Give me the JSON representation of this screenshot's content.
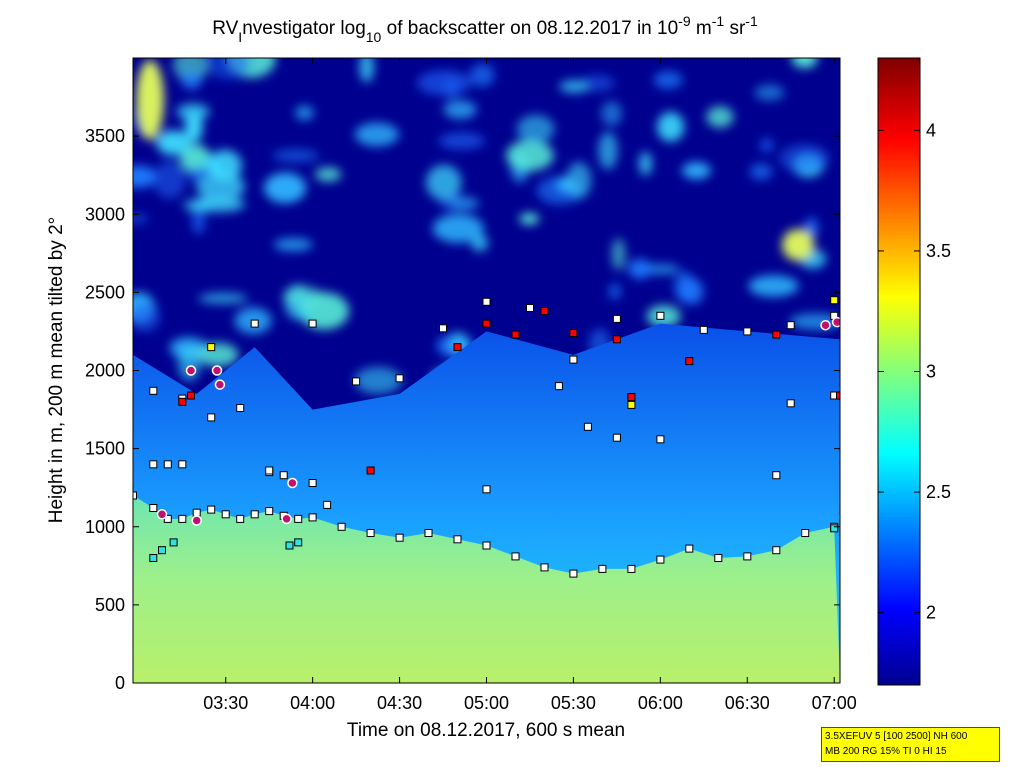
{
  "chart_data": {
    "type": "heatmap",
    "title": {
      "prefix": "RV",
      "sub_i": "I",
      "mid": "nvestigator log",
      "sub_10": "10",
      "suffix": " of backscatter on 08.12.2017 in 10",
      "sup1": "-9",
      "unit_m": " m",
      "sup2": "-1",
      "unit_sr": " sr",
      "sup3": "-1"
    },
    "xlabel": "Time on 08.12.2017, 600 s mean",
    "ylabel": "Height in m, 200 m mean tilted by 2°",
    "x_range": [
      "02:58",
      "07:02"
    ],
    "x_ticks": [
      "03:30",
      "04:00",
      "04:30",
      "05:00",
      "05:30",
      "06:00",
      "06:30",
      "07:00"
    ],
    "ylim": [
      0,
      4000
    ],
    "y_ticks": [
      0,
      500,
      1000,
      1500,
      2000,
      2500,
      3000,
      3500
    ],
    "colorbar": {
      "range": [
        1.7,
        4.3
      ],
      "ticks": [
        2,
        2.5,
        3,
        3.5,
        4
      ],
      "colormap": "jet"
    },
    "series": [
      {
        "kind": "boundary-layer-top",
        "marker": "square",
        "fill": "#ffffff",
        "x": [
          "02:58",
          "03:05",
          "03:10",
          "03:15",
          "03:20",
          "03:25",
          "03:30",
          "03:35",
          "03:40",
          "03:45",
          "03:50",
          "03:55",
          "04:00",
          "04:10",
          "04:20",
          "04:30",
          "04:40",
          "04:50",
          "05:00",
          "05:10",
          "05:20",
          "05:30",
          "05:40",
          "05:50",
          "06:00",
          "06:10",
          "06:20",
          "06:30",
          "06:40",
          "06:50",
          "07:00"
        ],
        "y": [
          1200,
          1120,
          1050,
          1050,
          1090,
          1110,
          1080,
          1050,
          1080,
          1100,
          1070,
          1050,
          1060,
          1000,
          960,
          930,
          960,
          920,
          880,
          810,
          740,
          700,
          730,
          730,
          790,
          860,
          800,
          810,
          850,
          960,
          1000
        ]
      },
      {
        "kind": "cloud-layer-2",
        "marker": "square",
        "fill": "#ffffff",
        "x": [
          "03:40",
          "04:00",
          "04:15",
          "04:30",
          "04:45",
          "05:00",
          "05:15",
          "05:30",
          "05:45",
          "06:00",
          "06:15",
          "06:30",
          "06:45",
          "07:00"
        ],
        "y": [
          2300,
          2300,
          1930,
          1950,
          2270,
          2440,
          2400,
          2070,
          2330,
          2350,
          2260,
          2250,
          2290,
          2350
        ]
      },
      {
        "kind": "cloud-layer-3",
        "marker": "square",
        "fill": "#ffffff",
        "x": [
          "03:05",
          "03:15",
          "03:25",
          "03:35",
          "03:45",
          "04:00",
          "05:25",
          "05:35",
          "05:45",
          "06:00",
          "06:45",
          "07:00"
        ],
        "y": [
          1870,
          1820,
          1700,
          1760,
          1350,
          1280,
          1900,
          1640,
          1570,
          1560,
          1790,
          1840
        ]
      },
      {
        "kind": "low-cloud-markers",
        "marker": "square",
        "fill": "#ffffff",
        "x": [
          "03:05",
          "03:10",
          "03:15",
          "03:45",
          "03:50",
          "04:05",
          "05:00",
          "06:40"
        ],
        "y": [
          1400,
          1400,
          1400,
          1360,
          1330,
          1140,
          1240,
          1330
        ]
      },
      {
        "kind": "red-detections",
        "marker": "square",
        "fill": "#ff0000",
        "x": [
          "03:15",
          "03:18",
          "04:20",
          "04:50",
          "05:00",
          "05:10",
          "05:20",
          "05:30",
          "05:45",
          "05:50",
          "06:10",
          "06:40",
          "07:02"
        ],
        "y": [
          1800,
          1840,
          1360,
          2150,
          2300,
          2230,
          2380,
          2240,
          2200,
          1830,
          2060,
          2230,
          1840
        ]
      },
      {
        "kind": "yellow-detections",
        "marker": "square",
        "fill": "#ffff00",
        "x": [
          "03:25",
          "05:50",
          "07:00"
        ],
        "y": [
          2150,
          1780,
          2450
        ]
      },
      {
        "kind": "cyan-detections",
        "marker": "square",
        "fill": "#33e0e0",
        "x": [
          "03:05",
          "03:08",
          "03:12",
          "03:52",
          "03:55",
          "07:00"
        ],
        "y": [
          800,
          850,
          900,
          880,
          900,
          990
        ]
      },
      {
        "kind": "circle-detections",
        "marker": "circle",
        "fill": "#c01070",
        "x": [
          "03:08",
          "03:18",
          "03:20",
          "03:27",
          "03:28",
          "03:51",
          "03:53",
          "06:57",
          "07:01"
        ],
        "y": [
          1080,
          2000,
          1040,
          2000,
          1910,
          1050,
          1280,
          2290,
          2310
        ]
      }
    ]
  },
  "info_box": {
    "line1": "3.5XEFUV 5 [100 2500] NH 600",
    "line2": "MB 200 RG 15% TI 0 HI 15"
  }
}
